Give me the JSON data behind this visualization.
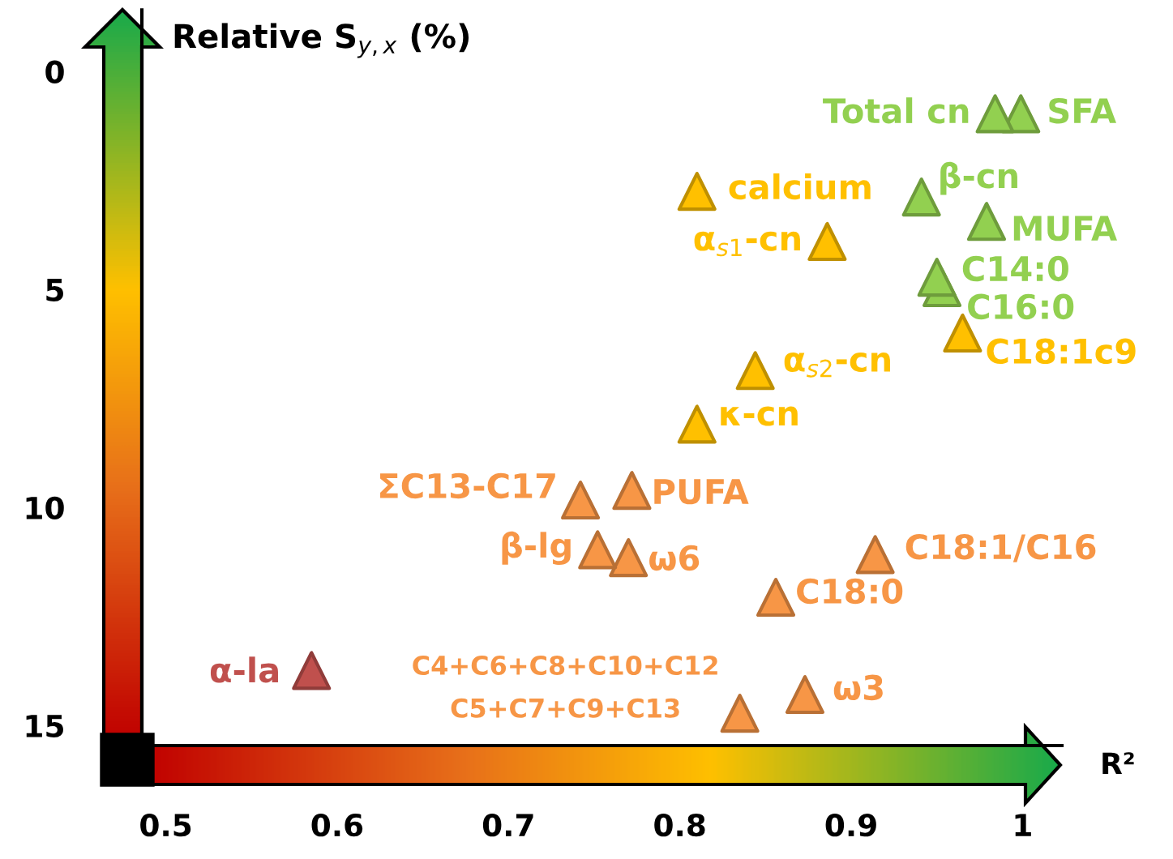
{
  "chart_data": {
    "type": "scatter",
    "xlabel": "R²",
    "ylabel": "Relative S$_{y,x}$ (%)",
    "xlim": [
      0.486,
      1.023
    ],
    "ylim": [
      15.46,
      -1.41
    ],
    "xticks": [
      0.5,
      0.6,
      0.7,
      0.8,
      0.9,
      1
    ],
    "yticks": [
      0,
      5,
      10,
      15
    ],
    "grid": false,
    "legend": false,
    "marker": "triangle",
    "series": [
      {
        "name": "Total cn",
        "color": "#92d050",
        "x": [
          0.984
        ],
        "values": [
          0.97
        ]
      },
      {
        "name": "SFA",
        "color": "#92d050",
        "x": [
          0.999
        ],
        "values": [
          0.97
        ]
      },
      {
        "name": "calcium",
        "color": "#ffc000",
        "x": [
          0.81
        ],
        "values": [
          2.75
        ]
      },
      {
        "name": "β-cn",
        "color": "#92d050",
        "x": [
          0.941
        ],
        "values": [
          2.88
        ]
      },
      {
        "name": "MUFA",
        "color": "#92d050",
        "x": [
          0.979
        ],
        "values": [
          3.44
        ]
      },
      {
        "name": "α$_{s1}$-cn",
        "color": "#ffc000",
        "x": [
          0.886
        ],
        "values": [
          3.9
        ]
      },
      {
        "name": "C14:0",
        "color": "#92d050",
        "x": [
          0.95
        ],
        "values": [
          4.72
        ]
      },
      {
        "name": "C16:0",
        "color": "#92d050",
        "x": [
          0.953
        ],
        "values": [
          4.96
        ]
      },
      {
        "name": "C18:1c9",
        "color": "#ffc000",
        "x": [
          0.965
        ],
        "values": [
          6.0
        ]
      },
      {
        "name": "α$_{s2}$-cn",
        "color": "#ffc000",
        "x": [
          0.844
        ],
        "values": [
          6.86
        ]
      },
      {
        "name": "κ-cn",
        "color": "#ffc000",
        "x": [
          0.81
        ],
        "values": [
          8.09
        ]
      },
      {
        "name": "ΣC13-C17",
        "color": "#f79646",
        "x": [
          0.742
        ],
        "values": [
          9.83
        ]
      },
      {
        "name": "PUFA",
        "color": "#f79646",
        "x": [
          0.772
        ],
        "values": [
          9.61
        ]
      },
      {
        "name": "β-lg",
        "color": "#f79646",
        "x": [
          0.752
        ],
        "values": [
          10.97
        ]
      },
      {
        "name": "ω6",
        "color": "#f79646",
        "x": [
          0.77
        ],
        "values": [
          11.15
        ]
      },
      {
        "name": "C18:1/C16",
        "color": "#f79646",
        "x": [
          0.914
        ],
        "values": [
          11.08
        ]
      },
      {
        "name": "C18:0",
        "color": "#f79646",
        "x": [
          0.856
        ],
        "values": [
          12.06
        ]
      },
      {
        "name": "α-la",
        "color": "#c0504d",
        "x": [
          0.585
        ],
        "values": [
          13.74
        ]
      },
      {
        "name": "C4+C6+C8+C10+C12\nC5+C7+C9+C13",
        "color": "#f79646",
        "x": [
          0.835
        ],
        "values": [
          14.72
        ]
      },
      {
        "name": "ω3",
        "color": "#f79646",
        "x": [
          0.873
        ],
        "values": [
          14.29
        ]
      }
    ]
  }
}
